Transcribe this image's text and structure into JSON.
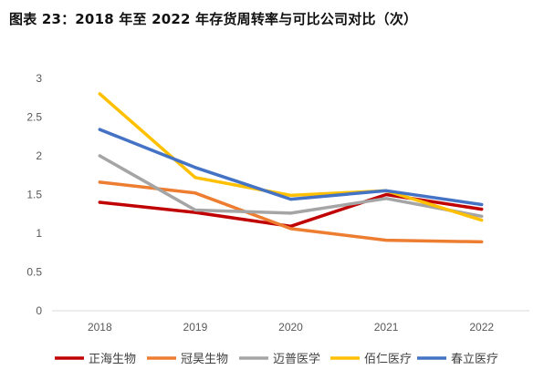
{
  "title": "图表 23：2018 年至 2022 年存货周转率与可比公司对比（次）",
  "chart_data": {
    "type": "line",
    "title": "",
    "xlabel": "",
    "ylabel": "",
    "x": [
      "2018",
      "2019",
      "2020",
      "2021",
      "2022"
    ],
    "yticks": [
      "0",
      "0.5",
      "1",
      "1.5",
      "2",
      "2.5",
      "3"
    ],
    "ylim": [
      0,
      3
    ],
    "grid": false,
    "legend": "bottom",
    "series": [
      {
        "name": "正海生物",
        "color": "#C00000",
        "values": [
          1.4,
          1.27,
          1.09,
          1.5,
          1.31
        ]
      },
      {
        "name": "冠昊生物",
        "color": "#ED7D31",
        "values": [
          1.66,
          1.52,
          1.06,
          0.91,
          0.89
        ]
      },
      {
        "name": "迈普医学",
        "color": "#A5A5A5",
        "values": [
          2.0,
          1.3,
          1.26,
          1.45,
          1.22
        ]
      },
      {
        "name": "佰仁医疗",
        "color": "#FFC000",
        "values": [
          2.8,
          1.72,
          1.49,
          1.55,
          1.17
        ]
      },
      {
        "name": "春立医疗",
        "color": "#4472C4",
        "values": [
          2.34,
          1.85,
          1.44,
          1.55,
          1.37
        ]
      }
    ]
  }
}
